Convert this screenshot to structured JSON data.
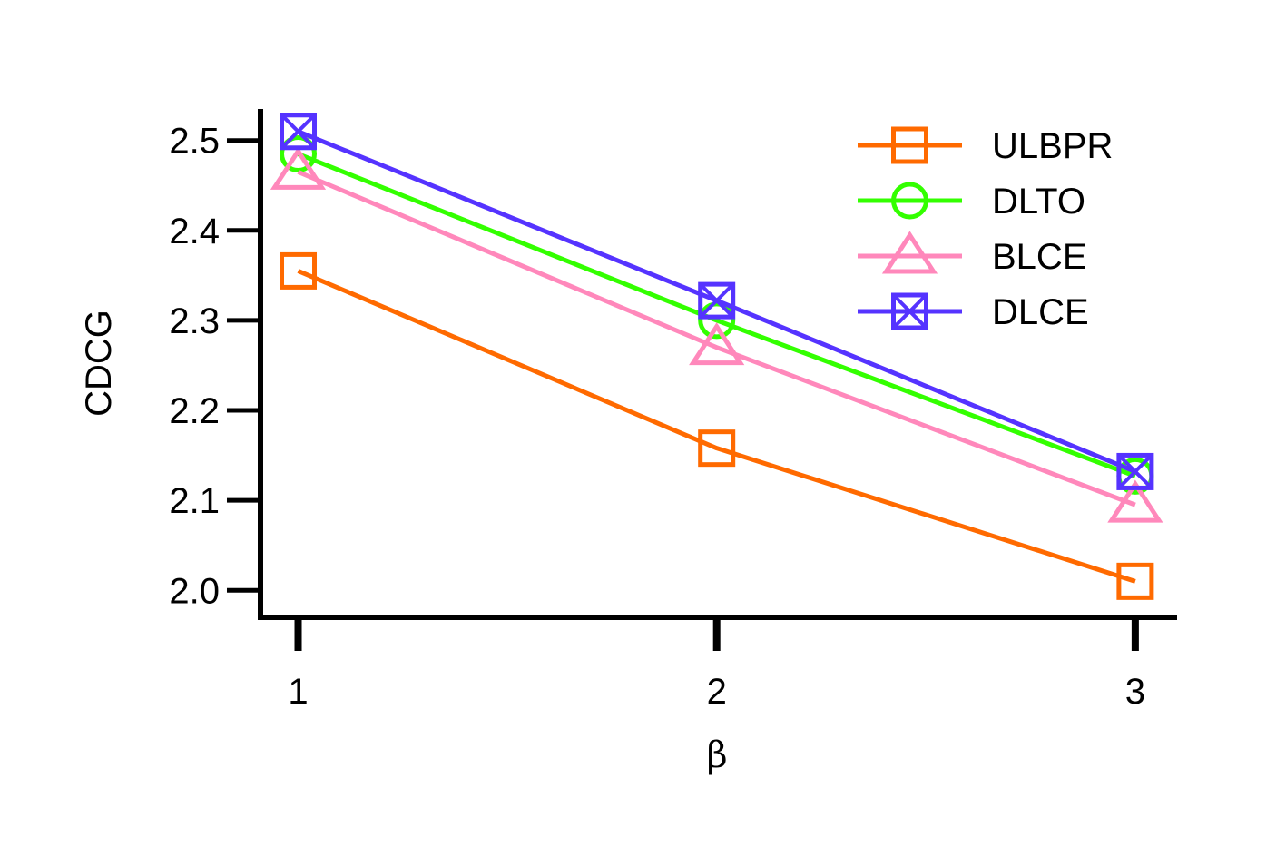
{
  "chart_data": {
    "type": "line",
    "xlabel": "β",
    "ylabel": "CDCG",
    "x": [
      1,
      2,
      3
    ],
    "xticks": [
      "1",
      "2",
      "3"
    ],
    "xlim": [
      0.91,
      3.1
    ],
    "ylim": [
      1.97,
      2.535
    ],
    "yticks": [
      "2.0",
      "2.1",
      "2.2",
      "2.3",
      "2.4",
      "2.5"
    ],
    "grid": false,
    "legend_position": "top-right",
    "series": [
      {
        "name": "ULBPR",
        "values": [
          2.355,
          2.158,
          2.01
        ],
        "color": "#FF6A00",
        "marker": "square"
      },
      {
        "name": "DLTO",
        "values": [
          2.485,
          2.3,
          2.127
        ],
        "color": "#33FF00",
        "marker": "circle"
      },
      {
        "name": "BLCE",
        "values": [
          2.465,
          2.27,
          2.095
        ],
        "color": "#FF88BB",
        "marker": "triangle"
      },
      {
        "name": "DLCE",
        "values": [
          2.51,
          2.322,
          2.132
        ],
        "color": "#5533FF",
        "marker": "square-x"
      }
    ]
  }
}
